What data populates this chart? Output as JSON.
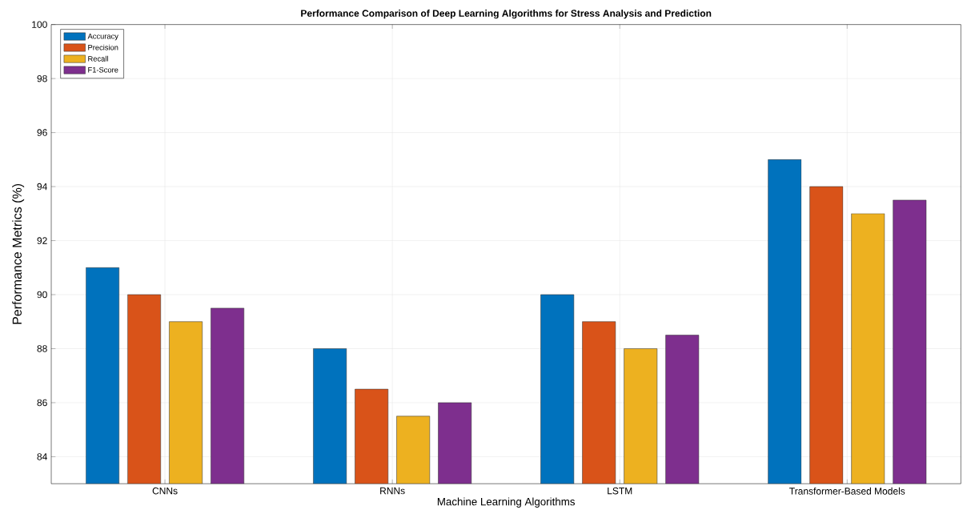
{
  "chart_data": {
    "type": "bar",
    "title": "Performance Comparison of Deep Learning Algorithms for Stress Analysis and Prediction",
    "xlabel": "Machine Learning Algorithms",
    "ylabel": "Performance Metrics (%)",
    "categories": [
      "CNNs",
      "RNNs",
      "LSTM",
      "Transformer-Based Models"
    ],
    "series": [
      {
        "name": "Accuracy",
        "color": "#0072bd",
        "values": [
          91,
          88,
          90,
          95
        ]
      },
      {
        "name": "Precision",
        "color": "#d95319",
        "values": [
          90,
          86.5,
          89,
          94
        ]
      },
      {
        "name": "Recall",
        "color": "#edb120",
        "values": [
          89,
          85.5,
          88,
          93
        ]
      },
      {
        "name": "F1-Score",
        "color": "#7e2f8e",
        "values": [
          89.5,
          86,
          88.5,
          93.5
        ]
      }
    ],
    "ylim": [
      83,
      100
    ],
    "yticks": [
      84,
      86,
      88,
      90,
      92,
      94,
      96,
      98,
      100
    ],
    "grid": true,
    "legend": "top left"
  }
}
